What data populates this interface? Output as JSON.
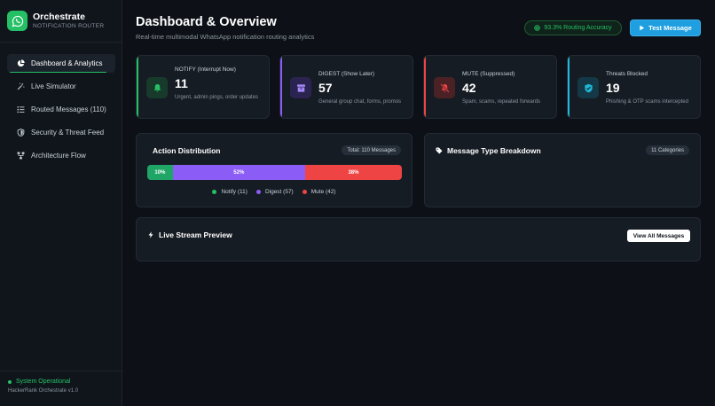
{
  "brand": {
    "title": "Orchestrate",
    "subtitle": "NOTIFICATION ROUTER",
    "logo_icon": "whatsapp-icon",
    "color": "#25c065"
  },
  "sidebar": {
    "items": [
      {
        "label": "Dashboard & Analytics",
        "icon": "pie-chart-icon",
        "active": true
      },
      {
        "label": "Live Simulator",
        "icon": "magic-wand-icon",
        "active": false
      },
      {
        "label": "Routed Messages (110)",
        "icon": "list-icon",
        "active": false
      },
      {
        "label": "Security & Threat Feed",
        "icon": "shield-icon",
        "active": false
      },
      {
        "label": "Architecture Flow",
        "icon": "network-icon",
        "active": false
      }
    ],
    "status": "System Operational",
    "version": "HackerRank Orchestrate v1.0"
  },
  "header": {
    "title": "Dashboard & Overview",
    "subtitle": "Real-time multimodal WhatsApp notification routing analytics",
    "accuracy_badge": "93.3% Routing Accuracy",
    "test_button": "Test Message"
  },
  "stats": [
    {
      "label": "NOTIFY (Interrupt Now)",
      "value": "11",
      "desc": "Urgent, admin pings, order updates",
      "color": "#25c065",
      "icon": "bell-icon"
    },
    {
      "label": "DIGEST (Show Later)",
      "value": "57",
      "desc": "General group chat, forms, promos",
      "color": "#8b5cf6",
      "icon": "archive-icon"
    },
    {
      "label": "MUTE (Suppressed)",
      "value": "42",
      "desc": "Spam, scams, repeated forwards",
      "color": "#ef4444",
      "icon": "bell-off-icon"
    },
    {
      "label": "Threats Blocked",
      "value": "19",
      "desc": "Phishing & OTP scams intercepted",
      "color": "#1fb8d9",
      "icon": "shield-check-icon"
    }
  ],
  "distribution": {
    "title": "Action Distribution",
    "total": "Total: 110 Messages",
    "segments": [
      {
        "label": "10%",
        "share": 10,
        "color": "#1fa566"
      },
      {
        "label": "52%",
        "share": 52,
        "color": "#8b5cf6"
      },
      {
        "label": "38%",
        "share": 38,
        "color": "#ef4444"
      }
    ],
    "legend": [
      {
        "label": "Notify (11)",
        "color": "#25c065"
      },
      {
        "label": "Digest (57)",
        "color": "#8b5cf6"
      },
      {
        "label": "Mute (42)",
        "color": "#ef4444"
      }
    ]
  },
  "breakdown": {
    "title": "Message Type Breakdown",
    "count": "11 Categories",
    "icon": "tag-icon"
  },
  "stream": {
    "title": "Live Stream Preview",
    "button": "View All Messages",
    "icon": "lightning-icon"
  }
}
